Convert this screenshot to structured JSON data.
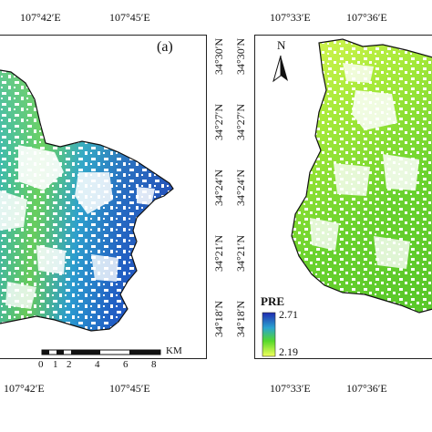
{
  "panel_a": {
    "tag": "(a)",
    "top_lon": [
      "107°42′E",
      "107°45′E"
    ],
    "bottom_lon": [
      "107°42′E",
      "107°45′E"
    ],
    "lat": [
      "34°30′N",
      "34°27′N",
      "34°24′N",
      "34°21′N",
      "34°18′N"
    ],
    "scale": {
      "ticks": [
        "0",
        "1",
        "2",
        "4",
        "6",
        "8"
      ],
      "unit": "KM"
    }
  },
  "panel_b": {
    "top_lon": [
      "107°33′E",
      "107°36′E"
    ],
    "bottom_lon": [
      "107°33′E",
      "107°36′E"
    ],
    "lat": [
      "34°30′N",
      "34°27′N",
      "34°24′N",
      "34°21′N",
      "34°18′N"
    ],
    "north_label": "N",
    "legend": {
      "title": "PRE",
      "max": "2.71",
      "min": "2.19",
      "color_high": "#1f2ab0",
      "color_mid": "#55d92a",
      "color_low": "#f2ff5a"
    }
  },
  "colors": {
    "blue_high": "#1a2db8",
    "teal": "#29a6c4",
    "green": "#6fd64a",
    "yellow_green": "#c8f04a"
  }
}
